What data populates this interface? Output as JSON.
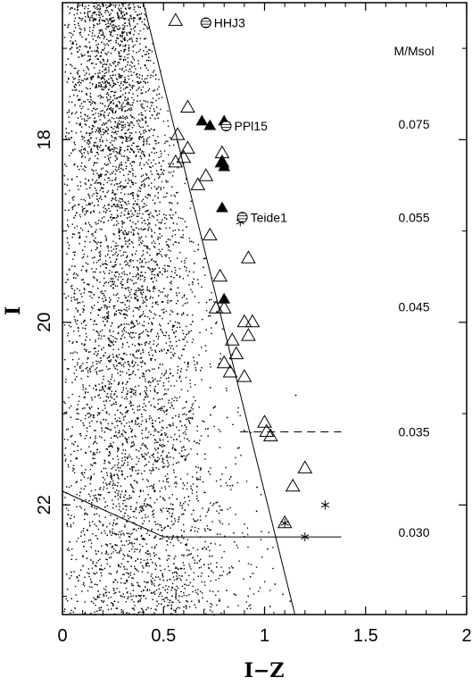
{
  "chart_data": {
    "type": "scatter",
    "title": "",
    "xlabel": "I−Z",
    "ylabel": "I",
    "xlim": [
      0,
      2
    ],
    "ylim": [
      23.2,
      16.5
    ],
    "y_inverted": true,
    "x_ticks": [
      0,
      0.5,
      1,
      1.5,
      2
    ],
    "x_tick_labels": [
      "0",
      "0.5",
      "1",
      "1.5",
      "2"
    ],
    "y_ticks": [
      18,
      20,
      22
    ],
    "y_tick_labels": [
      "18",
      "20",
      "22"
    ],
    "grid": false,
    "legend": "none",
    "mass_column_header": "M/Msol",
    "mass_labels": [
      {
        "text": "0.075",
        "I": 17.83
      },
      {
        "text": "0.055",
        "I": 18.85
      },
      {
        "text": "0.045",
        "I": 19.83
      },
      {
        "text": "0.035",
        "I": 21.2
      },
      {
        "text": "0.030",
        "I": 22.3
      }
    ],
    "named_objects": [
      {
        "name": "HHJ3",
        "x": 0.71,
        "y": 16.72
      },
      {
        "name": "PPl15",
        "x": 0.81,
        "y": 17.85
      },
      {
        "name": "Teide1",
        "x": 0.89,
        "y": 18.85
      }
    ],
    "open_triangles": [
      {
        "x": 0.56,
        "y": 16.7
      },
      {
        "x": 0.62,
        "y": 17.65
      },
      {
        "x": 0.57,
        "y": 17.95
      },
      {
        "x": 0.62,
        "y": 18.1
      },
      {
        "x": 0.6,
        "y": 18.2
      },
      {
        "x": 0.56,
        "y": 18.25
      },
      {
        "x": 0.79,
        "y": 18.15
      },
      {
        "x": 0.79,
        "y": 18.25
      },
      {
        "x": 0.71,
        "y": 18.4
      },
      {
        "x": 0.67,
        "y": 18.5
      },
      {
        "x": 0.73,
        "y": 19.05
      },
      {
        "x": 0.92,
        "y": 19.3
      },
      {
        "x": 0.78,
        "y": 19.5
      },
      {
        "x": 0.76,
        "y": 19.85
      },
      {
        "x": 0.8,
        "y": 19.85
      },
      {
        "x": 0.9,
        "y": 20.0
      },
      {
        "x": 0.94,
        "y": 20.0
      },
      {
        "x": 0.92,
        "y": 20.15
      },
      {
        "x": 0.84,
        "y": 20.2
      },
      {
        "x": 0.86,
        "y": 20.35
      },
      {
        "x": 0.8,
        "y": 20.45
      },
      {
        "x": 0.83,
        "y": 20.55
      },
      {
        "x": 0.9,
        "y": 20.6
      },
      {
        "x": 1.0,
        "y": 21.1
      },
      {
        "x": 1.01,
        "y": 21.2
      },
      {
        "x": 1.03,
        "y": 21.25
      },
      {
        "x": 1.2,
        "y": 21.6
      },
      {
        "x": 1.14,
        "y": 21.8
      },
      {
        "x": 1.1,
        "y": 22.2
      }
    ],
    "filled_triangles": [
      {
        "x": 0.69,
        "y": 17.8
      },
      {
        "x": 0.73,
        "y": 17.85
      },
      {
        "x": 0.8,
        "y": 17.8
      },
      {
        "x": 0.79,
        "y": 18.25
      },
      {
        "x": 0.8,
        "y": 18.3
      },
      {
        "x": 0.79,
        "y": 18.75
      },
      {
        "x": 0.8,
        "y": 19.75
      }
    ],
    "asterisks": [
      {
        "x": 0.88,
        "y": 18.9
      },
      {
        "x": 1.3,
        "y": 22.0
      },
      {
        "x": 1.1,
        "y": 22.2
      },
      {
        "x": 1.2,
        "y": 22.35
      }
    ],
    "field_stars_approx_count": 6500,
    "lines": [
      {
        "style": "solid",
        "points": [
          [
            0.4,
            16.5
          ],
          [
            1.15,
            23.2
          ]
        ]
      },
      {
        "style": "dashed",
        "points": [
          [
            0.88,
            21.2
          ],
          [
            1.38,
            21.2
          ]
        ]
      },
      {
        "style": "solid",
        "points": [
          [
            0.5,
            22.35
          ],
          [
            1.38,
            22.35
          ]
        ]
      },
      {
        "style": "solid",
        "points": [
          [
            0,
            21.85
          ],
          [
            0.5,
            22.35
          ]
        ]
      }
    ]
  }
}
